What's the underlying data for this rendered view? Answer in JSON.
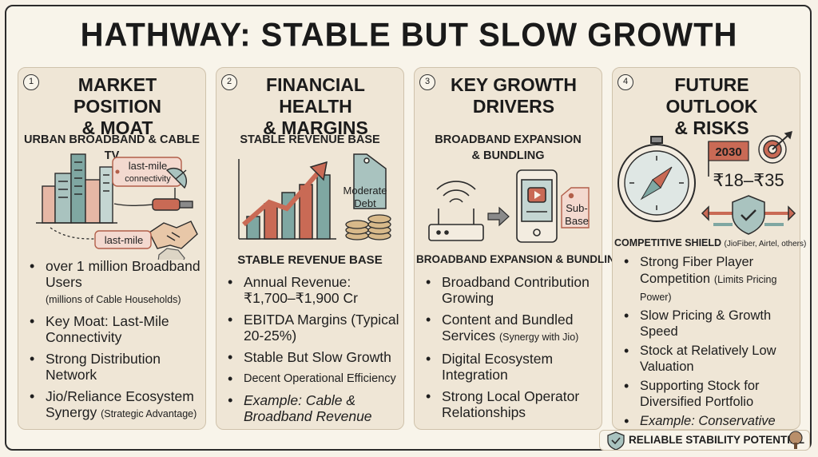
{
  "title": "HATHWAY: STABLE BUT SLOW GROWTH",
  "colors": {
    "accent_red": "#c96a55",
    "accent_teal": "#6f9590",
    "ink": "#2b2b2b",
    "card": "#efe6d6"
  },
  "cards": [
    {
      "number": "1",
      "heading": [
        "MARKET POSITION",
        "& MOAT"
      ],
      "subtitle": [
        "URBAN BROADBAND & CABLE TV"
      ],
      "tags": [
        "last-mile connectivity",
        "last-mile"
      ],
      "icons": [
        "city-buildings-icon",
        "satellite-dish-icon",
        "cable-icon",
        "handshake-icon",
        "india-map-icon"
      ],
      "bullets": [
        {
          "main": "over 1 million Broadband Users",
          "note": "(millions of Cable Households)"
        },
        {
          "main": "Key Moat: Last-Mile Connectivity"
        },
        {
          "main": "Strong Distribution Network"
        },
        {
          "main": "Jio/Reliance Ecosystem Synergy",
          "note": "(Strategic Advantage)"
        }
      ]
    },
    {
      "number": "2",
      "heading": [
        "FINANCIAL HEALTH",
        "& MARGINS"
      ],
      "subtitle": [
        "STABLE REVENUE BASE"
      ],
      "tags": [
        "Moderate Debt"
      ],
      "icons": [
        "growth-chart-icon",
        "price-tag-icon",
        "coin-stack-icon"
      ],
      "section": "STABLE REVENUE BASE",
      "bullets": [
        {
          "main": "Annual Revenue: ₹1,700–₹1,900 Cr"
        },
        {
          "main": "EBITDA Margins (Typical 20-25%)"
        },
        {
          "main": "Stable But Slow Growth"
        },
        {
          "main": "Decent Operational Efficiency",
          "small": true
        },
        {
          "main": "Example: Cable & Broadband Revenue",
          "italic": true
        }
      ]
    },
    {
      "number": "3",
      "heading": [
        "KEY GROWTH",
        "DRIVERS"
      ],
      "subtitle": [
        "BROADBAND EXPANSION",
        "& BUNDLING"
      ],
      "tags": [
        "Sub-Base"
      ],
      "icons": [
        "wifi-router-icon",
        "arrow-right-icon",
        "tablet-video-icon"
      ],
      "section": "BROADBAND EXPANSION & BUNDLING",
      "bullets": [
        {
          "main": "Broadband Contribution Growing"
        },
        {
          "main": "Content and Bundled Services",
          "note": "(Synergy with Jio)"
        },
        {
          "main": "Digital Ecosystem Integration"
        },
        {
          "main": "Strong Local Operator Relationships"
        }
      ]
    },
    {
      "number": "4",
      "heading": [
        "FUTURE OUTLOOK",
        "& RISKS"
      ],
      "year": "2030",
      "price_range": "₹18–₹35",
      "icons": [
        "compass-icon",
        "target-icon",
        "shield-check-icon",
        "flag-icon"
      ],
      "section": "COMPETITIVE SHIELD",
      "section_note": "(JioFiber, Airtel, others)",
      "bullets": [
        {
          "main": "Strong Fiber Player Competition",
          "note": "(Limits Pricing Power)"
        },
        {
          "main": "Slow Pricing & Growth Speed"
        },
        {
          "main": "Stock at Relatively Low Valuation"
        },
        {
          "main": "Supporting Stock for Diversified Portfolio"
        },
        {
          "main": "Example: Conservative Allocation / Low Risk",
          "italic": true
        }
      ]
    }
  ],
  "footer": {
    "label": "RELIABLE STABILITY POTENTIAL"
  }
}
